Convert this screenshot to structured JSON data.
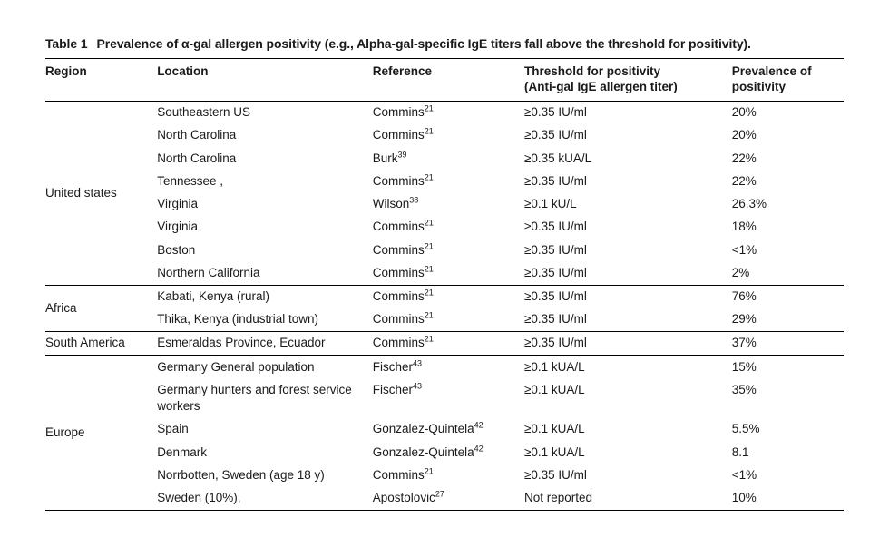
{
  "title_prefix": "Table 1",
  "title_text": "Prevalence of α-gal allergen positivity (e.g., Alpha-gal-specific IgE titers fall above the threshold for positivity).",
  "columns": {
    "region": "Region",
    "location": "Location",
    "reference": "Reference",
    "threshold_line1": "Threshold for positivity",
    "threshold_line2": "(Anti-gal IgE allergen titer)",
    "prevalence_line1": "Prevalence of",
    "prevalence_line2": "positivity"
  },
  "sections": [
    {
      "region": "United states",
      "rows": [
        {
          "location": "Southeastern US",
          "ref_name": "Commins",
          "ref_num": "21",
          "threshold": "≥0.35 IU/ml",
          "prevalence": "20%"
        },
        {
          "location": "North Carolina",
          "ref_name": "Commins",
          "ref_num": "21",
          "threshold": "≥0.35 IU/ml",
          "prevalence": "20%"
        },
        {
          "location": "North Carolina",
          "ref_name": "Burk",
          "ref_num": "39",
          "threshold": "≥0.35 kUA/L",
          "prevalence": "22%"
        },
        {
          "location": "Tennessee ,",
          "ref_name": "Commins",
          "ref_num": "21",
          "threshold": "≥0.35 IU/ml",
          "prevalence": "22%"
        },
        {
          "location": "Virginia",
          "ref_name": "Wilson",
          "ref_num": "38",
          "threshold": "≥0.1 kU/L",
          "prevalence": "26.3%"
        },
        {
          "location": "Virginia",
          "ref_name": "Commins",
          "ref_num": "21",
          "threshold": "≥0.35 IU/ml",
          "prevalence": "18%"
        },
        {
          "location": "Boston",
          "ref_name": "Commins",
          "ref_num": "21",
          "threshold": "≥0.35 IU/ml",
          "prevalence": "<1%"
        },
        {
          "location": "Northern California",
          "ref_name": "Commins",
          "ref_num": "21",
          "threshold": "≥0.35 IU/ml",
          "prevalence": "2%"
        }
      ]
    },
    {
      "region": "Africa",
      "rows": [
        {
          "location": "Kabati, Kenya (rural)",
          "ref_name": "Commins",
          "ref_num": "21",
          "threshold": "≥0.35 IU/ml",
          "prevalence": "76%"
        },
        {
          "location": "Thika, Kenya (industrial town)",
          "ref_name": "Commins",
          "ref_num": "21",
          "threshold": "≥0.35 IU/ml",
          "prevalence": "29%"
        }
      ]
    },
    {
      "region": "South America",
      "rows": [
        {
          "location": "Esmeraldas Province, Ecuador",
          "ref_name": "Commins",
          "ref_num": "21",
          "threshold": "≥0.35 IU/ml",
          "prevalence": "37%"
        }
      ]
    },
    {
      "region": "Europe",
      "rows": [
        {
          "location": "Germany General population",
          "ref_name": "Fischer",
          "ref_num": "43",
          "threshold": "≥0.1 kUA/L",
          "prevalence": "15%"
        },
        {
          "location": "Germany hunters and forest service workers",
          "ref_name": "Fischer",
          "ref_num": "43",
          "threshold": "≥0.1 kUA/L",
          "prevalence": "35%"
        },
        {
          "location": "Spain",
          "ref_name": "Gonzalez-Quintela",
          "ref_num": "42",
          "threshold": "≥0.1 kUA/L",
          "prevalence": "5.5%"
        },
        {
          "location": "Denmark",
          "ref_name": "Gonzalez-Quintela",
          "ref_num": "42",
          "threshold": "≥0.1 kUA/L",
          "prevalence": "8.1"
        },
        {
          "location": "Norrbotten, Sweden (age 18 y)",
          "ref_name": "Commins",
          "ref_num": "21",
          "threshold": "≥0.35 IU/ml",
          "prevalence": "<1%"
        },
        {
          "location": "Sweden (10%),",
          "ref_name": "Apostolovic",
          "ref_num": "27",
          "threshold": "Not reported",
          "prevalence": "10%"
        }
      ]
    }
  ]
}
